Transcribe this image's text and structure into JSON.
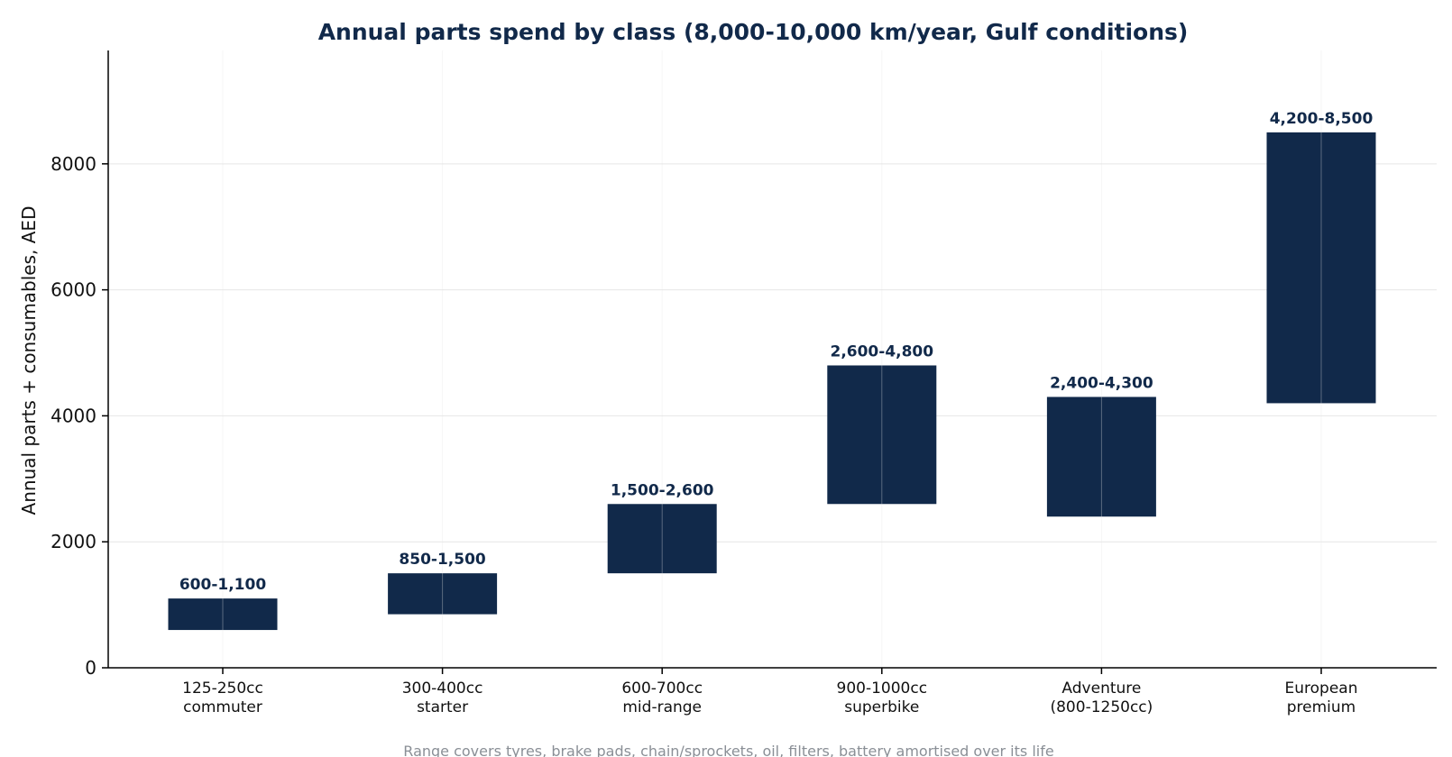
{
  "chart_data": {
    "type": "bar",
    "title": "Annual parts spend by class (8,000-10,000 km/year, Gulf conditions)",
    "xlabel": "",
    "ylabel": "Annual parts + consumables, AED",
    "footnote": "Range covers tyres, brake pads, chain/sprockets, oil, filters, battery amortised over its life",
    "ylim": [
      0,
      9800
    ],
    "yticks": [
      0,
      2000,
      4000,
      6000,
      8000
    ],
    "grid": true,
    "categories": [
      [
        "125-250cc",
        "commuter"
      ],
      [
        "300-400cc",
        "starter"
      ],
      [
        "600-700cc",
        "mid-range"
      ],
      [
        "900-1000cc",
        "superbike"
      ],
      [
        "Adventure",
        "(800-1250cc)"
      ],
      [
        "European",
        "premium"
      ]
    ],
    "ranges": [
      {
        "low": 600,
        "high": 1100,
        "label": "600-1,100"
      },
      {
        "low": 850,
        "high": 1500,
        "label": "850-1,500"
      },
      {
        "low": 1500,
        "high": 2600,
        "label": "1,500-2,600"
      },
      {
        "low": 2600,
        "high": 4800,
        "label": "2,600-4,800"
      },
      {
        "low": 2400,
        "high": 4300,
        "label": "2,400-4,300"
      },
      {
        "low": 4200,
        "high": 8500,
        "label": "4,200-8,500"
      }
    ],
    "colors": {
      "bar": "#11294a",
      "title": "#11294a",
      "data_label": "#11294a",
      "grid": "#e6e6e6",
      "axis": "#000000",
      "footnote": "#8a8f96"
    }
  }
}
